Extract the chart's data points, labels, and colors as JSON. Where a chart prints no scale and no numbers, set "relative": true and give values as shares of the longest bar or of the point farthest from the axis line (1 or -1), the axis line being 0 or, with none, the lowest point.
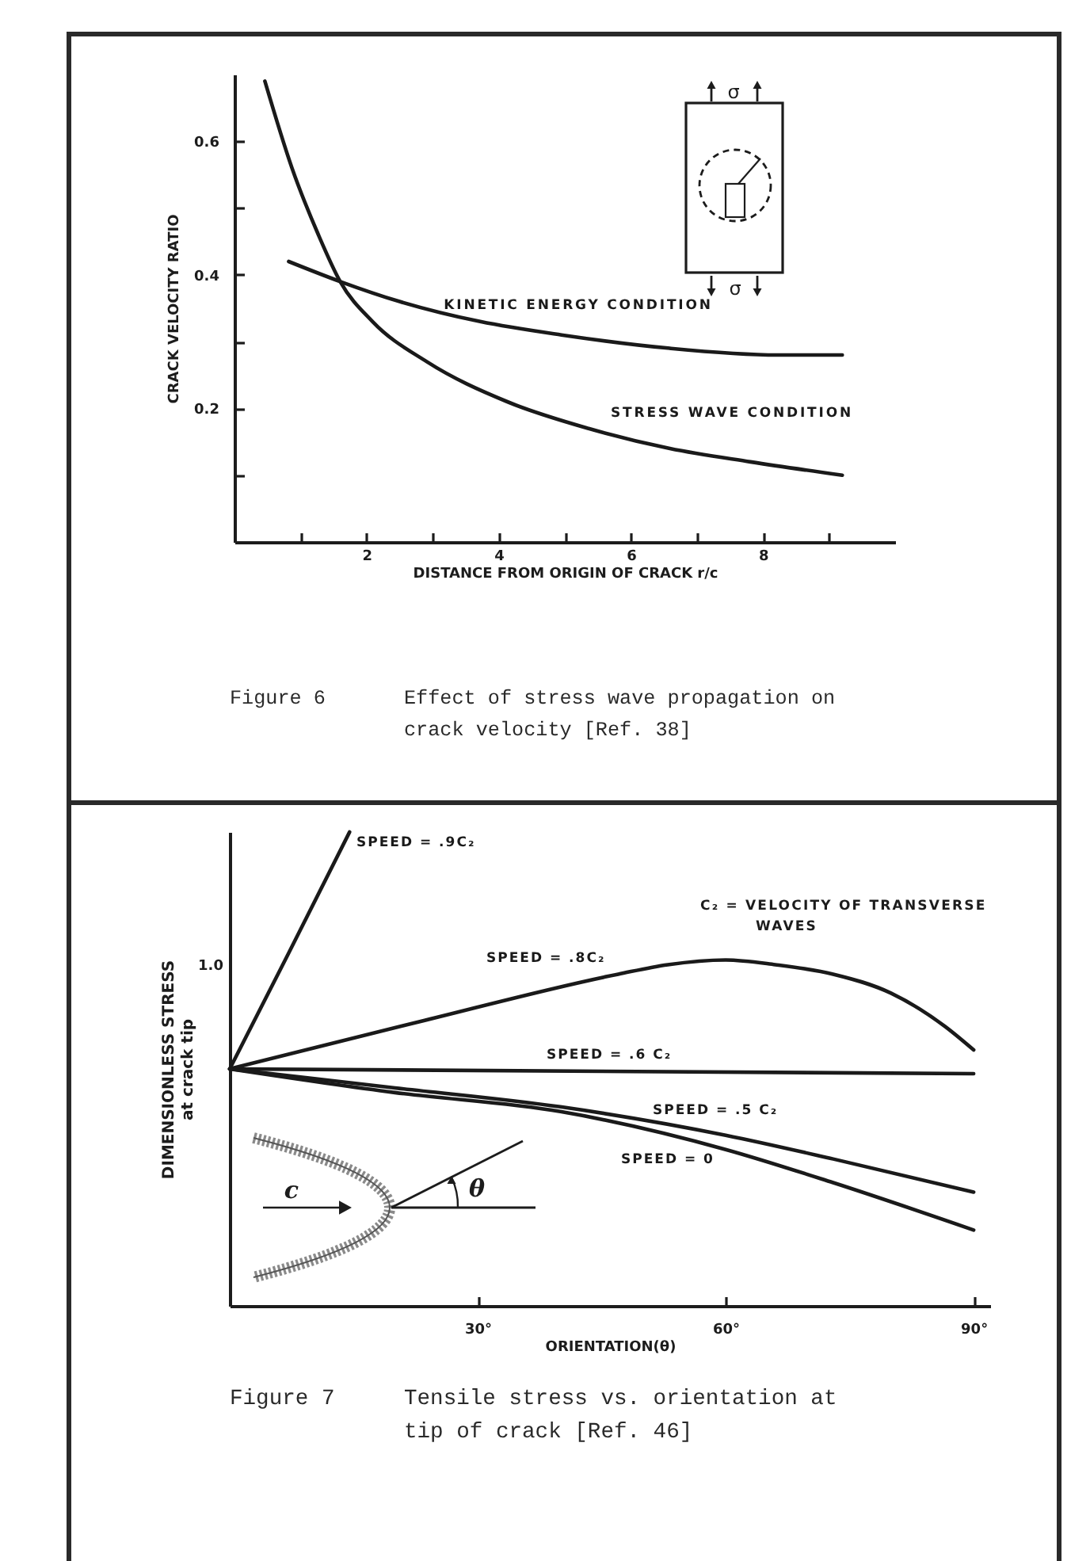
{
  "chart_data": [
    {
      "type": "line",
      "title": "Figure 6",
      "subtitle": "Effect of stress wave propagation on crack velocity [Ref. 38]",
      "xlabel": "DISTANCE FROM ORIGIN OF CRACK r/c",
      "ylabel": "CRACK VELOCITY RATIO",
      "annotations": [
        "σ",
        "σ"
      ],
      "xlim": [
        0,
        10
      ],
      "xticks": [
        {
          "value": 1,
          "label": null
        },
        2,
        {
          "value": 3,
          "label": null
        },
        4,
        {
          "value": 5,
          "label": null
        },
        6,
        {
          "value": 7,
          "label": null
        },
        8,
        {
          "value": 9,
          "label": null
        }
      ],
      "ylim": [
        0,
        0.7
      ],
      "yticks": [
        {
          "value": 0.1,
          "label": null
        },
        0.2,
        {
          "value": 0.3,
          "label": null
        },
        0.4,
        {
          "value": 0.5,
          "label": null
        },
        0.6
      ],
      "series": [
        {
          "name": "KINETIC ENERGY CONDITION",
          "color": "#1a1a1a",
          "x": [
            0.82,
            1.6,
            2.5,
            3.72,
            4.95,
            6.59,
            8.22,
            9.2
          ],
          "values": [
            0.42,
            0.39,
            0.36,
            0.33,
            0.31,
            0.29,
            0.28,
            0.28
          ]
        },
        {
          "name": "STRESS WAVE CONDITION",
          "color": "#1a1a1a",
          "x": [
            0.46,
            0.87,
            1.27,
            1.6,
            2.09,
            2.91,
            4.13,
            5.36,
            6.59,
            7.81,
            9.2
          ],
          "values": [
            0.69,
            0.56,
            0.46,
            0.39,
            0.33,
            0.27,
            0.21,
            0.17,
            0.14,
            0.12,
            0.1
          ]
        }
      ]
    },
    {
      "type": "line",
      "title": "Figure 7",
      "subtitle": "Tensile stress vs. orientation at tip of crack [Ref. 46]",
      "xlabel": "ORIENTATION(θ)",
      "ylabel": "DIMENSIONLESS STRESS\nat crack tip",
      "relative": true,
      "annotations": [
        "C₂ = VELOCITY OF TRANSVERSE WAVES",
        "1.0",
        "c",
        "θ"
      ],
      "xlim": [
        0,
        92
      ],
      "xticks": [
        {
          "value": 30,
          "label": "30°"
        },
        {
          "value": 60,
          "label": "60°"
        },
        {
          "value": 90,
          "label": "90°"
        }
      ],
      "series": [
        {
          "name": "SPEED = .9C₂",
          "color": "#1a1a1a",
          "x": [
            0,
            7,
            14.5
          ],
          "values": [
            0.5,
            0.74,
            1
          ]
        },
        {
          "name": "SPEED = .8C₂",
          "color": "#1a1a1a",
          "x": [
            0,
            23,
            47,
            53,
            60,
            66,
            73,
            80,
            86.5,
            90
          ],
          "values": [
            0.5,
            0.6,
            0.7,
            0.72,
            0.73,
            0.72,
            0.7,
            0.66,
            0.59,
            0.54
          ]
        },
        {
          "name": "SPEED = .6 C₂",
          "color": "#1a1a1a",
          "x": [
            0,
            90
          ],
          "values": [
            0.5,
            0.49
          ]
        },
        {
          "name": "SPEED = .5 C₂",
          "color": "#1a1a1a",
          "x": [
            0,
            20,
            40,
            60,
            73,
            90
          ],
          "values": [
            0.5,
            0.46,
            0.42,
            0.36,
            0.31,
            0.24
          ]
        },
        {
          "name": "SPEED = 0",
          "color": "#1a1a1a",
          "x": [
            0,
            20,
            40,
            60,
            73,
            90
          ],
          "values": [
            0.5,
            0.45,
            0.41,
            0.33,
            0.26,
            0.16
          ]
        }
      ]
    }
  ]
}
